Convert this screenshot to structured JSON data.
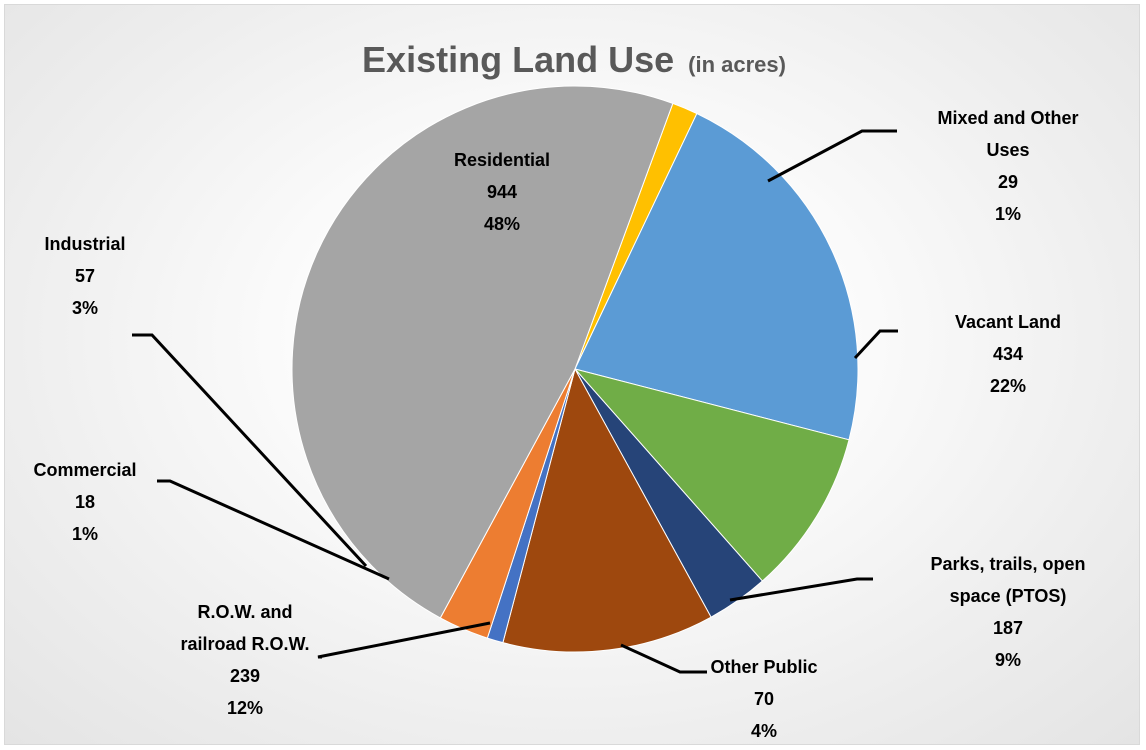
{
  "chart_data": {
    "type": "pie",
    "title": "Existing Land Use",
    "subtitle": "(in acres)",
    "slices": [
      {
        "name": "Mixed and Other Uses",
        "value": 29,
        "percent": "1%",
        "color": "#FFC000",
        "label_lines": [
          "Mixed and Other",
          "Uses",
          "29",
          "1%"
        ]
      },
      {
        "name": "Vacant Land",
        "value": 434,
        "percent": "22%",
        "color": "#5B9BD5",
        "label_lines": [
          "Vacant Land",
          "434",
          "22%"
        ]
      },
      {
        "name": "Parks, trails, open space (PTOS)",
        "value": 187,
        "percent": "9%",
        "color": "#70AD47",
        "label_lines": [
          "Parks, trails, open",
          "space (PTOS)",
          "187",
          "9%"
        ]
      },
      {
        "name": "Other Public",
        "value": 70,
        "percent": "4%",
        "color": "#264478",
        "label_lines": [
          "Other Public",
          "70",
          "4%"
        ]
      },
      {
        "name": "R.O.W. and railroad R.O.W.",
        "value": 239,
        "percent": "12%",
        "color": "#9E480E",
        "label_lines": [
          "R.O.W. and",
          "railroad R.O.W.",
          "239",
          "12%"
        ]
      },
      {
        "name": "Commercial",
        "value": 18,
        "percent": "1%",
        "color": "#4472C4",
        "label_lines": [
          "Commercial",
          "18",
          "1%"
        ]
      },
      {
        "name": "Industrial",
        "value": 57,
        "percent": "3%",
        "color": "#ED7D31",
        "label_lines": [
          "Industrial",
          "57",
          "3%"
        ]
      },
      {
        "name": "Residential",
        "value": 944,
        "percent": "48%",
        "color": "#A5A5A5",
        "label_lines": [
          "Residential",
          "944",
          "48%"
        ]
      }
    ]
  }
}
